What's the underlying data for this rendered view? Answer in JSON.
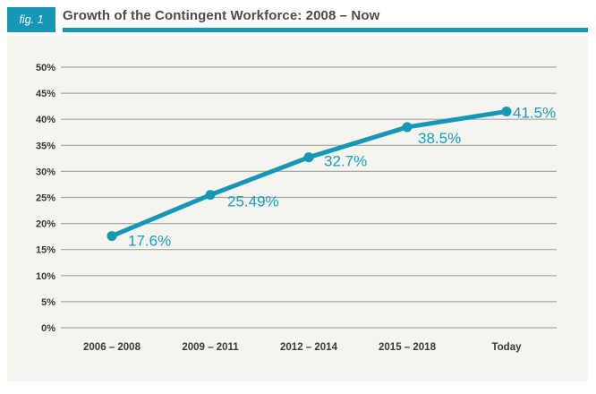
{
  "figure": {
    "badge": "fig. 1",
    "title": "Growth of the Contingent Workforce: 2008 – Now"
  },
  "colors": {
    "accent": "#1697b5",
    "point_label": "#189dbf",
    "grid": "#a9a7a2",
    "panel_bg": "#f5f4ee",
    "title_text": "#4b4b4d",
    "axis_text": "#3b3833"
  },
  "chart_data": {
    "type": "line",
    "title": "Growth of the Contingent Workforce: 2008 – Now",
    "categories": [
      "2006 – 2008",
      "2009 – 2011",
      "2012 – 2014",
      "2015 – 2018",
      "Today"
    ],
    "values": [
      17.6,
      25.49,
      32.7,
      38.5,
      41.5
    ],
    "point_labels": [
      "17.6%",
      "25.49%",
      "32.7%",
      "38.5%",
      "41.5%"
    ],
    "xlabel": "",
    "ylabel": "",
    "ylim": [
      0,
      50
    ],
    "ytick_step": 5,
    "ytick_labels": [
      "0%",
      "5%",
      "10%",
      "15%",
      "20%",
      "25%",
      "30%",
      "35%",
      "40%",
      "45%",
      "50%"
    ],
    "grid": "horizontal",
    "legend": "none",
    "marker": "circle",
    "line_width": 5
  }
}
